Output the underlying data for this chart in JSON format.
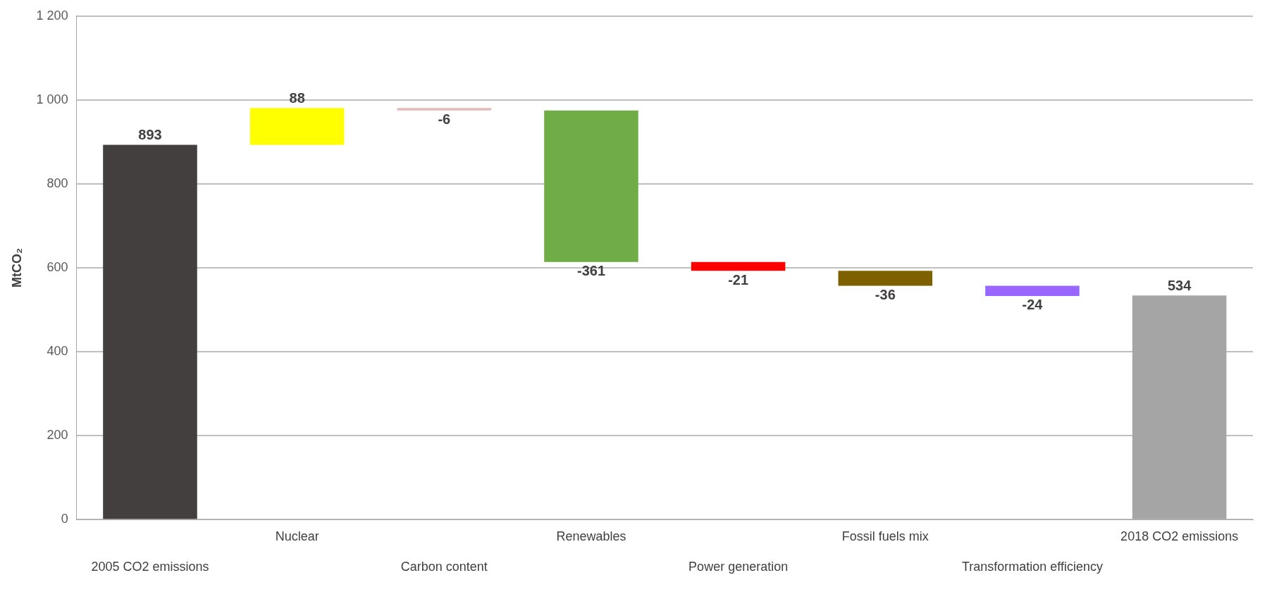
{
  "chart_data": {
    "type": "bar",
    "ylabel": "MtCO₂",
    "categories": [
      "2005 CO2 emissions",
      "Nuclear",
      "Carbon content",
      "Renewables",
      "Power generation",
      "Fossil fuels mix",
      "Transformation efficiency",
      "2018 CO2 emissions"
    ],
    "values": [
      893,
      88,
      -6,
      -361,
      -21,
      -36,
      -24,
      534
    ],
    "base": [
      0,
      893,
      981,
      975,
      614,
      593,
      557,
      0
    ],
    "colors": [
      "#433f3e",
      "#ffff00",
      "#e6b8b7",
      "#70ad47",
      "#ff0000",
      "#7f6000",
      "#9966ff",
      "#a5a5a5"
    ],
    "ylim": [
      0,
      1200
    ],
    "yticks": [
      0,
      200,
      400,
      600,
      800,
      {
        "value": 1000,
        "label": "1 000"
      },
      {
        "value": 1200,
        "label": "1 200"
      }
    ],
    "grid": "y",
    "data_labels": true,
    "legend": false
  }
}
